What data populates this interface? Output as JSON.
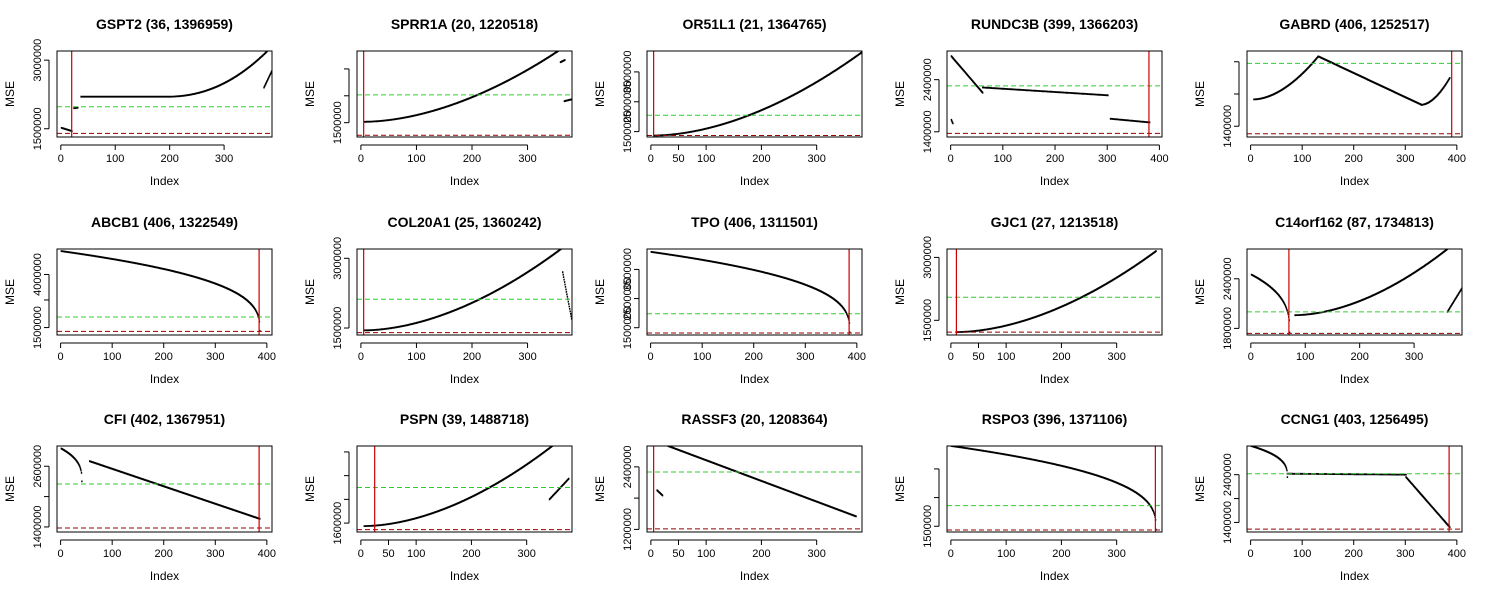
{
  "figure": {
    "layout": "3x5 grid",
    "colors": {
      "data": "#000000",
      "vline": "#CC0000",
      "mean_line": "#33CC33",
      "min_line": "#990000",
      "frame": "#000000"
    }
  },
  "chart_data": [
    {
      "type": "scatter",
      "title": "GSPT2 (36, 1396959)",
      "xlabel": "Index",
      "ylabel": "MSE",
      "xlim": [
        -7,
        388
      ],
      "ylim": [
        1320000,
        3200000
      ],
      "xticks": [
        0,
        100,
        200,
        300
      ],
      "yticks": [
        1500000,
        3000000
      ],
      "xtick_labels": [
        "0",
        "100",
        "200",
        "300"
      ],
      "ytick_labels": [
        "1500000",
        "3000000"
      ],
      "vline": 20,
      "hline_green": 1980000,
      "hline_red": 1400000,
      "segments": [
        [
          0,
          19,
          1520000,
          1450000,
          "flat"
        ],
        [
          23,
          30,
          1950000,
          1960000,
          "flat"
        ],
        [
          36,
          380,
          2200000,
          3220000,
          "u"
        ]
      ],
      "tail": [
        [
          372,
          388,
          2400000,
          2800000
        ]
      ]
    },
    {
      "type": "scatter",
      "title": "SPRR1A (20, 1220518)",
      "xlabel": "Index",
      "ylabel": "MSE",
      "xlim": [
        -7,
        380
      ],
      "ylim": [
        1180000,
        3100000
      ],
      "xticks": [
        0,
        100,
        200,
        300
      ],
      "yticks": [
        1500000
      ],
      "minor_yticks": [
        2100000,
        2700000
      ],
      "xtick_labels": [
        "0",
        "100",
        "200",
        "300"
      ],
      "ytick_labels": [
        "1500000"
      ],
      "vline": 5,
      "hline_green": 2120000,
      "hline_red": 1220000,
      "segments": [
        [
          5,
          360,
          1520000,
          3150000,
          "rise"
        ]
      ],
      "tail": [
        [
          358,
          366,
          2850000,
          2900000
        ],
        [
          365,
          378,
          1980000,
          2020000
        ]
      ]
    },
    {
      "type": "scatter",
      "title": "OR51L1 (21, 1364765)",
      "xlabel": "Index",
      "ylabel": "MSE",
      "xlim": [
        -7,
        382
      ],
      "ylim": [
        1320000,
        4200000
      ],
      "xticks": [
        0,
        50,
        100,
        200,
        300
      ],
      "yticks": [
        1500000,
        2500000,
        3500000
      ],
      "xtick_labels": [
        "0",
        "50",
        "100",
        "200",
        "300"
      ],
      "ytick_labels": [
        "1500000",
        "2500000",
        "3500000"
      ],
      "vline": 5,
      "hline_green": 2050000,
      "hline_red": 1370000,
      "segments": [
        [
          5,
          380,
          1370000,
          4150000,
          "rise"
        ]
      ],
      "tail": []
    },
    {
      "type": "scatter",
      "title": "RUNDC3B (399, 1366203)",
      "xlabel": "Index",
      "ylabel": "MSE",
      "xlim": [
        -7,
        405
      ],
      "ylim": [
        1300000,
        2950000
      ],
      "xticks": [
        0,
        100,
        200,
        300,
        400
      ],
      "yticks": [
        1400000,
        2400000
      ],
      "xtick_labels": [
        "0",
        "100",
        "200",
        "300",
        "400"
      ],
      "ytick_labels": [
        "1400000",
        "2400000"
      ],
      "vline": 380,
      "hline_green": 2280000,
      "hline_red": 1370000,
      "segments": [
        [
          0,
          60,
          2850000,
          2150000,
          "fall"
        ],
        [
          60,
          300,
          2250000,
          2100000,
          "fall"
        ],
        [
          305,
          380,
          1650000,
          1580000,
          "flat"
        ]
      ],
      "tail": [
        [
          0,
          3,
          1630000,
          1560000
        ]
      ]
    },
    {
      "type": "scatter",
      "title": "GABRD (406, 1252517)",
      "xlabel": "Index",
      "ylabel": "MSE",
      "xlim": [
        -7,
        410
      ],
      "ylim": [
        1200000,
        2800000
      ],
      "xticks": [
        0,
        100,
        200,
        300,
        400
      ],
      "yticks": [
        1400000
      ],
      "minor_yticks": [
        2000000,
        2600000
      ],
      "xtick_labels": [
        "0",
        "100",
        "200",
        "300",
        "400"
      ],
      "ytick_labels": [
        "1400000"
      ],
      "vline": 390,
      "hline_green": 2570000,
      "hline_red": 1260000,
      "segments": [
        [
          5,
          130,
          1900000,
          2700000,
          "rise"
        ],
        [
          130,
          330,
          2700000,
          1800000,
          "fall"
        ],
        [
          330,
          385,
          1800000,
          2300000,
          "rise"
        ]
      ],
      "tail": []
    },
    {
      "type": "scatter",
      "title": "ABCB1 (406, 1322549)",
      "xlabel": "Index",
      "ylabel": "MSE",
      "xlim": [
        -7,
        410
      ],
      "ylim": [
        1150000,
        5200000
      ],
      "xticks": [
        0,
        100,
        200,
        300,
        400
      ],
      "yticks": [
        1500000,
        4000000
      ],
      "minor_yticks": [
        2800000
      ],
      "xtick_labels": [
        "0",
        "100",
        "200",
        "300",
        "400"
      ],
      "ytick_labels": [
        "1500000",
        "4000000"
      ],
      "vline": 385,
      "hline_green": 2000000,
      "hline_red": 1320000,
      "segments": [
        [
          0,
          385,
          5100000,
          1350000,
          "decay"
        ]
      ],
      "tail": []
    },
    {
      "type": "scatter",
      "title": "COL20A1 (25, 1360242)",
      "xlabel": "Index",
      "ylabel": "MSE",
      "xlim": [
        -7,
        380
      ],
      "ylim": [
        1350000,
        3200000
      ],
      "xticks": [
        0,
        100,
        200,
        300
      ],
      "yticks": [
        1500000,
        3000000
      ],
      "xtick_labels": [
        "0",
        "100",
        "200",
        "300"
      ],
      "ytick_labels": [
        "1500000",
        "3000000"
      ],
      "vline": 5,
      "hline_green": 2120000,
      "hline_red": 1400000,
      "segments": [
        [
          5,
          370,
          1450000,
          3300000,
          "rise"
        ]
      ],
      "tail": [
        [
          362,
          378,
          2700000,
          1700000
        ]
      ]
    },
    {
      "type": "scatter",
      "title": "TPO (406, 1311501)",
      "xlabel": "Index",
      "ylabel": "MSE",
      "xlim": [
        -7,
        410
      ],
      "ylim": [
        1250000,
        4200000
      ],
      "xticks": [
        0,
        100,
        200,
        300,
        400
      ],
      "yticks": [
        1500000,
        2500000,
        3500000
      ],
      "xtick_labels": [
        "0",
        "100",
        "200",
        "300",
        "400"
      ],
      "ytick_labels": [
        "1500000",
        "2500000",
        "3500000"
      ],
      "vline": 385,
      "hline_green": 1980000,
      "hline_red": 1320000,
      "segments": [
        [
          0,
          385,
          4100000,
          1340000,
          "decay"
        ]
      ],
      "tail": []
    },
    {
      "type": "scatter",
      "title": "GJC1 (27, 1213518)",
      "xlabel": "Index",
      "ylabel": "MSE",
      "xlim": [
        -7,
        382
      ],
      "ylim": [
        1150000,
        3200000
      ],
      "xticks": [
        0,
        50,
        100,
        200,
        300
      ],
      "yticks": [
        1500000,
        3000000
      ],
      "xtick_labels": [
        "0",
        "50",
        "100",
        "200",
        "300"
      ],
      "ytick_labels": [
        "1500000",
        "3000000"
      ],
      "vline": 10,
      "hline_green": 2050000,
      "hline_red": 1220000,
      "segments": [
        [
          10,
          370,
          1220000,
          3150000,
          "rise"
        ]
      ],
      "tail": []
    },
    {
      "type": "scatter",
      "title": "C14orf162 (87, 1734813)",
      "xlabel": "Index",
      "ylabel": "MSE",
      "xlim": [
        -7,
        388
      ],
      "ylim": [
        1720000,
        2760000
      ],
      "xticks": [
        0,
        100,
        200,
        300
      ],
      "yticks": [
        1800000,
        2400000
      ],
      "xtick_labels": [
        "0",
        "100",
        "200",
        "300"
      ],
      "ytick_labels": [
        "1800000",
        "2400000"
      ],
      "vline": 70,
      "hline_green": 2000000,
      "hline_red": 1740000,
      "segments": [
        [
          0,
          70,
          2450000,
          1750000,
          "decay"
        ],
        [
          80,
          360,
          1960000,
          2760000,
          "rise"
        ]
      ],
      "tail": [
        [
          360,
          388,
          2000000,
          2300000
        ]
      ]
    },
    {
      "type": "scatter",
      "title": "CFI (402, 1367951)",
      "xlabel": "Index",
      "ylabel": "MSE",
      "xlim": [
        -7,
        410
      ],
      "ylim": [
        1300000,
        3000000
      ],
      "xticks": [
        0,
        100,
        200,
        300,
        400
      ],
      "yticks": [
        1400000,
        2600000
      ],
      "minor_yticks": [
        2000000
      ],
      "xtick_labels": [
        "0",
        "100",
        "200",
        "300",
        "400"
      ],
      "ytick_labels": [
        "1400000",
        "2600000"
      ],
      "vline": 385,
      "hline_green": 2250000,
      "hline_red": 1380000,
      "segments": [
        [
          0,
          40,
          2950000,
          2300000,
          "decay"
        ],
        [
          55,
          385,
          2700000,
          1560000,
          "fall"
        ]
      ],
      "tail": []
    },
    {
      "type": "scatter",
      "title": "PSPN (39, 1488718)",
      "xlabel": "Index",
      "ylabel": "MSE",
      "xlim": [
        -7,
        382
      ],
      "ylim": [
        1450000,
        2900000
      ],
      "xticks": [
        0,
        50,
        100,
        200,
        300
      ],
      "yticks": [
        1600000
      ],
      "minor_yticks": [
        2000000,
        2400000,
        2800000
      ],
      "xtick_labels": [
        "0",
        "50",
        "100",
        "200",
        "300"
      ],
      "ytick_labels": [
        "1600000"
      ],
      "vline": 25,
      "hline_green": 2200000,
      "hline_red": 1490000,
      "segments": [
        [
          5,
          345,
          1550000,
          2900000,
          "rise"
        ]
      ],
      "tail": [
        [
          340,
          375,
          2000000,
          2350000
        ]
      ]
    },
    {
      "type": "scatter",
      "title": "RASSF3 (20, 1208364)",
      "xlabel": "Index",
      "ylabel": "MSE",
      "xlim": [
        -7,
        382
      ],
      "ylim": [
        1150000,
        2800000
      ],
      "xticks": [
        0,
        50,
        100,
        200,
        300
      ],
      "yticks": [
        1200000,
        2400000
      ],
      "minor_yticks": [
        1800000
      ],
      "xtick_labels": [
        "0",
        "50",
        "100",
        "200",
        "300"
      ],
      "ytick_labels": [
        "1200000",
        "2400000"
      ],
      "vline": 5,
      "hline_green": 2300000,
      "hline_red": 1210000,
      "segments": [
        [
          10,
          20,
          1950000,
          1850000,
          "flat"
        ],
        [
          30,
          370,
          2800000,
          1450000,
          "fall"
        ]
      ],
      "tail": []
    },
    {
      "type": "scatter",
      "title": "RSPO3 (396, 1371106)",
      "xlabel": "Index",
      "ylabel": "MSE",
      "xlim": [
        -7,
        382
      ],
      "ylim": [
        1300000,
        4300000
      ],
      "xticks": [
        0,
        100,
        200,
        300
      ],
      "yticks": [
        1500000
      ],
      "minor_yticks": [
        2500000,
        3500000
      ],
      "xtick_labels": [
        "0",
        "100",
        "200",
        "300"
      ],
      "ytick_labels": [
        "1500000"
      ],
      "vline": 370,
      "hline_green": 2220000,
      "hline_red": 1370000,
      "segments": [
        [
          0,
          370,
          4300000,
          1380000,
          "decay"
        ]
      ],
      "tail": []
    },
    {
      "type": "scatter",
      "title": "CCNG1 (403, 1256495)",
      "xlabel": "Index",
      "ylabel": "MSE",
      "xlim": [
        -7,
        410
      ],
      "ylim": [
        1200000,
        3000000
      ],
      "xticks": [
        0,
        100,
        200,
        300,
        400
      ],
      "yticks": [
        1400000,
        2400000
      ],
      "minor_yticks": [
        1900000
      ],
      "xtick_labels": [
        "0",
        "100",
        "200",
        "300",
        "400"
      ],
      "ytick_labels": [
        "1400000",
        "2400000"
      ],
      "vline": 385,
      "hline_green": 2420000,
      "hline_red": 1260000,
      "segments": [
        [
          0,
          70,
          3000000,
          2350000,
          "decay"
        ],
        [
          70,
          300,
          2420000,
          2400000,
          "flat"
        ],
        [
          300,
          385,
          2350000,
          1300000,
          "fall"
        ]
      ],
      "tail": []
    }
  ]
}
